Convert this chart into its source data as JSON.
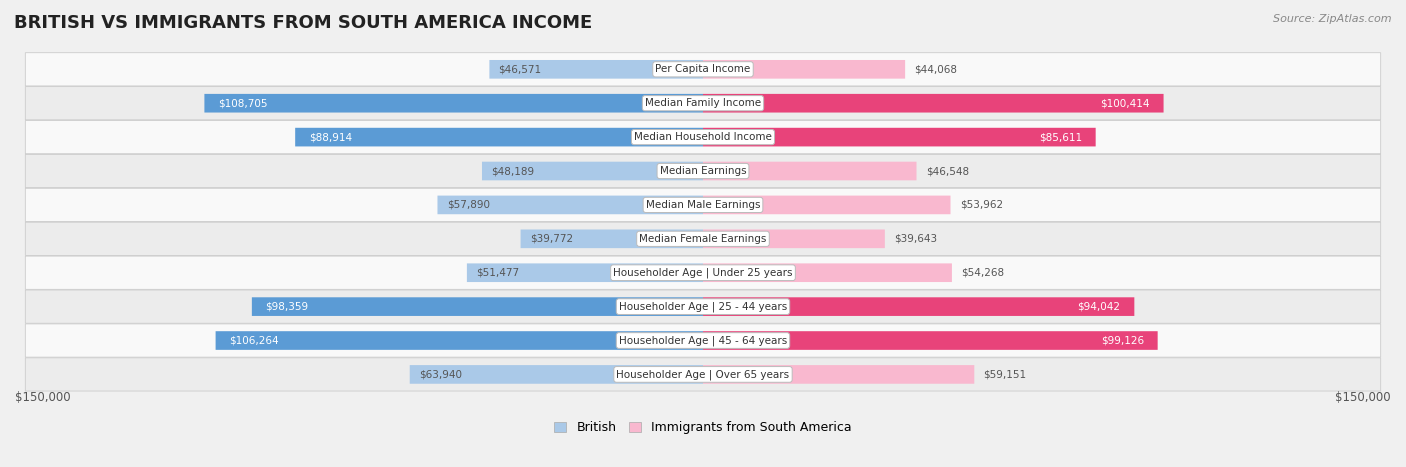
{
  "title": "BRITISH VS IMMIGRANTS FROM SOUTH AMERICA INCOME",
  "source": "Source: ZipAtlas.com",
  "categories": [
    "Per Capita Income",
    "Median Family Income",
    "Median Household Income",
    "Median Earnings",
    "Median Male Earnings",
    "Median Female Earnings",
    "Householder Age | Under 25 years",
    "Householder Age | 25 - 44 years",
    "Householder Age | 45 - 64 years",
    "Householder Age | Over 65 years"
  ],
  "british": [
    46571,
    108705,
    88914,
    48189,
    57890,
    39772,
    51477,
    98359,
    106264,
    63940
  ],
  "immigrants": [
    44068,
    100414,
    85611,
    46548,
    53962,
    39643,
    54268,
    94042,
    99126,
    59151
  ],
  "british_color_light": "#aac9e8",
  "british_color_dark": "#5b9bd5",
  "immigrants_color_light": "#f9b8cf",
  "immigrants_color_dark": "#e8437a",
  "max_val": 150000,
  "bar_height": 0.55,
  "background_color": "#f0f0f0",
  "row_bg_even": "#f9f9f9",
  "row_bg_odd": "#ececec",
  "label_color_inside": "#ffffff",
  "label_color_outside": "#555555",
  "inside_threshold": 65000,
  "legend_british": "British",
  "legend_immigrants": "Immigrants from South America"
}
